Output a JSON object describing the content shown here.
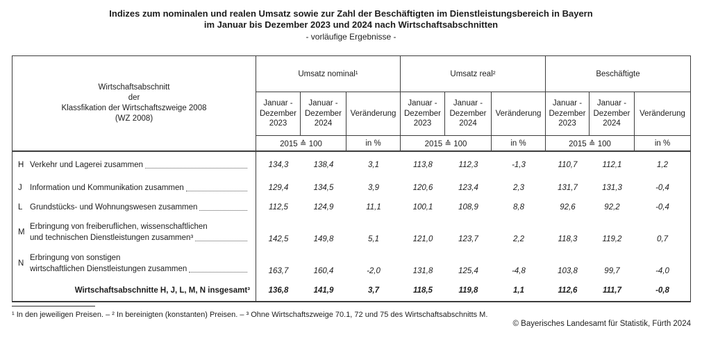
{
  "title": {
    "line1": "Indizes zum nominalen und realen Umsatz sowie zur Zahl der Beschäftigten im Dienstleistungsbereich in Bayern",
    "line2": "im Januar bis Dezember 2023 und 2024 nach Wirtschaftsabschnitten",
    "line3": "- vorläufige Ergebnisse -"
  },
  "table": {
    "stub_header": {
      "line1": "Wirtschaftsabschnitt",
      "line2": "der",
      "line3": "Klassfikation der Wirtschaftszweige 2008",
      "line4": "(WZ 2008)"
    },
    "groups": [
      {
        "label": "Umsatz nominal¹"
      },
      {
        "label": "Umsatz real²"
      },
      {
        "label": "Beschäftigte"
      }
    ],
    "col_2023": "Januar -\nDezember\n2023",
    "col_2024": "Januar -\nDezember\n2024",
    "col_change": "Veränderung",
    "unit_index": "2015 ≙ 100",
    "unit_change": "in %",
    "rows": [
      {
        "code": "H",
        "line1": "Verkehr und Lagerei zusammen",
        "line2": "",
        "values": [
          "134,3",
          "138,4",
          "3,1",
          "113,8",
          "112,3",
          "-1,3",
          "110,7",
          "112,1",
          "1,2"
        ]
      },
      {
        "code": "J",
        "line1": "Information und Kommunikation zusammen",
        "line2": "",
        "values": [
          "129,4",
          "134,5",
          "3,9",
          "120,6",
          "123,4",
          "2,3",
          "131,7",
          "131,3",
          "-0,4"
        ]
      },
      {
        "code": "L",
        "line1": "Grundstücks- und Wohnungswesen zusammen",
        "line2": "",
        "values": [
          "112,5",
          "124,9",
          "11,1",
          "100,1",
          "108,9",
          "8,8",
          "92,6",
          "92,2",
          "-0,4"
        ]
      },
      {
        "code": "M",
        "line1": "Erbringung von freiberuflichen, wissenschaftlichen",
        "line2": "und technischen Dienstleistungen zusammen³",
        "values": [
          "142,5",
          "149,8",
          "5,1",
          "121,0",
          "123,7",
          "2,2",
          "118,3",
          "119,2",
          "0,7"
        ]
      },
      {
        "code": "N",
        "line1": "Erbringung von sonstigen",
        "line2": "wirtschaftlichen Dienstleistungen zusammen",
        "values": [
          "163,7",
          "160,4",
          "-2,0",
          "131,8",
          "125,4",
          "-4,8",
          "103,8",
          "99,7",
          "-4,0"
        ]
      },
      {
        "code": "",
        "line1": "Wirtschaftsabschnitte H, J, L, M, N insgesamt³",
        "line2": "",
        "values": [
          "136,8",
          "141,9",
          "3,7",
          "118,5",
          "119,8",
          "1,1",
          "112,6",
          "111,7",
          "-0,8"
        ]
      }
    ]
  },
  "footnote": "¹ In den jeweiligen Preisen. – ² In bereinigten (konstanten) Preisen. – ³ Ohne Wirtschaftszweige 70.1, 72 und 75 des Wirtschaftsabschnitts M.",
  "copyright": "© Bayerisches Landesamt für Statistik, Fürth 2024"
}
